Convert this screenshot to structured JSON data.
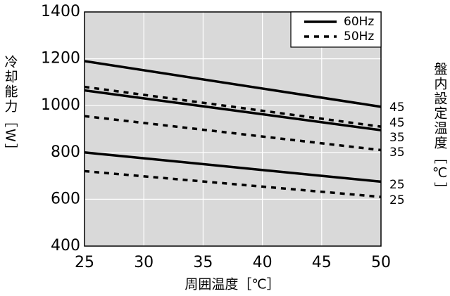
{
  "chart_data": {
    "type": "line",
    "x_label": "周囲温度［℃］",
    "y_label": "冷却能力［W］",
    "right_label": "盤内設定温度［℃］",
    "x": [
      25,
      50
    ],
    "xlim": [
      25,
      50
    ],
    "xticks": [
      25,
      30,
      35,
      40,
      45,
      50
    ],
    "ylim": [
      400,
      1400
    ],
    "yticks": [
      400,
      600,
      800,
      1000,
      1200,
      1400
    ],
    "grid": true,
    "color": "#000000",
    "background": "#d9d9d9",
    "legend_position": "upper right",
    "legend": [
      {
        "name": "60Hz",
        "dash": "solid"
      },
      {
        "name": "50Hz",
        "dash": "dashed"
      }
    ],
    "series": [
      {
        "end_label": "45",
        "dash": "solid",
        "values": [
          1190,
          995
        ]
      },
      {
        "end_label": "45",
        "dash": "dashed",
        "values": [
          1080,
          910
        ]
      },
      {
        "end_label": "35",
        "dash": "solid",
        "values": [
          1065,
          895
        ]
      },
      {
        "end_label": "35",
        "dash": "dashed",
        "values": [
          955,
          810
        ]
      },
      {
        "end_label": "25",
        "dash": "solid",
        "values": [
          800,
          675
        ]
      },
      {
        "end_label": "25",
        "dash": "dashed",
        "values": [
          720,
          610
        ]
      }
    ]
  }
}
